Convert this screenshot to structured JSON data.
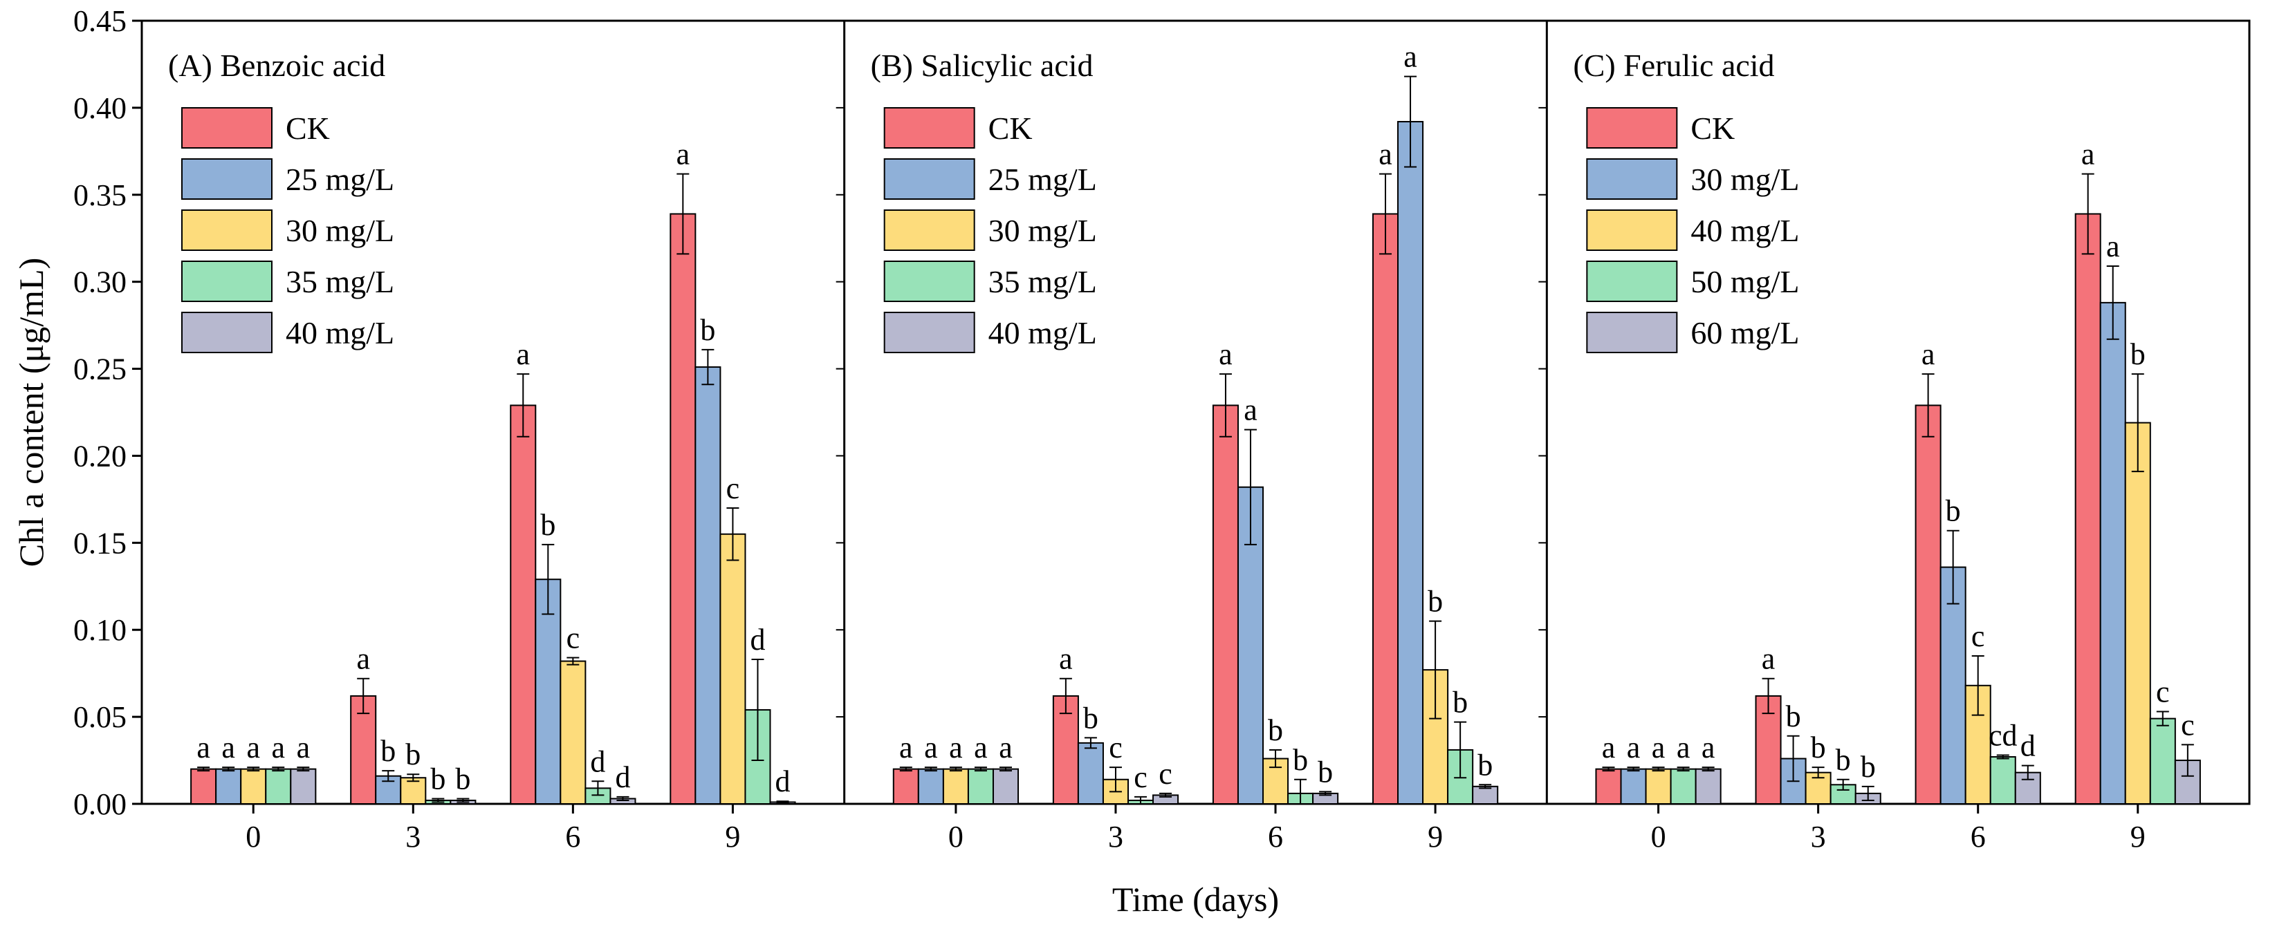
{
  "chart_data": {
    "type": "bar",
    "ylabel": "Chl a content (μg/mL)",
    "xlabel": "Time (days)",
    "ylim": [
      0,
      0.45
    ],
    "yticks": [
      "0.00",
      "0.05",
      "0.10",
      "0.15",
      "0.20",
      "0.25",
      "0.30",
      "0.35",
      "0.40",
      "0.45"
    ],
    "categories": [
      "0",
      "3",
      "6",
      "9"
    ],
    "colors": [
      "#f4737a",
      "#8fb0d8",
      "#fddc7c",
      "#98e2b8",
      "#b7b8cf"
    ],
    "panels": [
      {
        "title": "(A) Benzoic acid",
        "series": [
          {
            "name": "CK",
            "values": [
              0.02,
              0.062,
              0.229,
              0.339
            ],
            "errors": [
              0.001,
              0.01,
              0.018,
              0.023
            ],
            "labels": [
              "a",
              "a",
              "a",
              "a"
            ]
          },
          {
            "name": "25 mg/L",
            "values": [
              0.02,
              0.016,
              0.129,
              0.251
            ],
            "errors": [
              0.001,
              0.003,
              0.02,
              0.01
            ],
            "labels": [
              "a",
              "b",
              "b",
              "b"
            ]
          },
          {
            "name": "30 mg/L",
            "values": [
              0.02,
              0.015,
              0.082,
              0.155
            ],
            "errors": [
              0.001,
              0.002,
              0.002,
              0.015
            ],
            "labels": [
              "a",
              "b",
              "c",
              "c"
            ]
          },
          {
            "name": "35 mg/L",
            "values": [
              0.02,
              0.002,
              0.009,
              0.054
            ],
            "errors": [
              0.001,
              0.001,
              0.004,
              0.029
            ],
            "labels": [
              "a",
              "b",
              "d",
              "d"
            ]
          },
          {
            "name": "40 mg/L",
            "values": [
              0.02,
              0.002,
              0.003,
              0.001
            ],
            "errors": [
              0.001,
              0.001,
              0.001,
              0.0005
            ],
            "labels": [
              "a",
              "b",
              "d",
              "d"
            ]
          }
        ]
      },
      {
        "title": "(B) Salicylic acid",
        "series": [
          {
            "name": "CK",
            "values": [
              0.02,
              0.062,
              0.229,
              0.339
            ],
            "errors": [
              0.001,
              0.01,
              0.018,
              0.023
            ],
            "labels": [
              "a",
              "a",
              "a",
              "a"
            ]
          },
          {
            "name": "25 mg/L",
            "values": [
              0.02,
              0.035,
              0.182,
              0.392
            ],
            "errors": [
              0.001,
              0.003,
              0.033,
              0.026
            ],
            "labels": [
              "a",
              "b",
              "a",
              "a"
            ]
          },
          {
            "name": "30 mg/L",
            "values": [
              0.02,
              0.014,
              0.026,
              0.077
            ],
            "errors": [
              0.001,
              0.007,
              0.005,
              0.028
            ],
            "labels": [
              "a",
              "c",
              "b",
              "b"
            ]
          },
          {
            "name": "35 mg/L",
            "values": [
              0.02,
              0.002,
              0.006,
              0.031
            ],
            "errors": [
              0.001,
              0.002,
              0.008,
              0.016
            ],
            "labels": [
              "a",
              "c",
              "b",
              "b"
            ]
          },
          {
            "name": "40 mg/L",
            "values": [
              0.02,
              0.005,
              0.006,
              0.01
            ],
            "errors": [
              0.001,
              0.001,
              0.001,
              0.001
            ],
            "labels": [
              "a",
              "c",
              "b",
              "b"
            ]
          }
        ]
      },
      {
        "title": "(C) Ferulic acid",
        "series": [
          {
            "name": "CK",
            "values": [
              0.02,
              0.062,
              0.229,
              0.339
            ],
            "errors": [
              0.001,
              0.01,
              0.018,
              0.023
            ],
            "labels": [
              "a",
              "a",
              "a",
              "a"
            ]
          },
          {
            "name": "30 mg/L",
            "values": [
              0.02,
              0.026,
              0.136,
              0.288
            ],
            "errors": [
              0.001,
              0.013,
              0.021,
              0.021
            ],
            "labels": [
              "a",
              "b",
              "b",
              "a"
            ]
          },
          {
            "name": "40 mg/L",
            "values": [
              0.02,
              0.018,
              0.068,
              0.219
            ],
            "errors": [
              0.001,
              0.003,
              0.017,
              0.028
            ],
            "labels": [
              "a",
              "b",
              "c",
              "b"
            ]
          },
          {
            "name": "50 mg/L",
            "values": [
              0.02,
              0.011,
              0.027,
              0.049
            ],
            "errors": [
              0.001,
              0.003,
              0.001,
              0.004
            ],
            "labels": [
              "a",
              "b",
              "cd",
              "c"
            ]
          },
          {
            "name": "60 mg/L",
            "values": [
              0.02,
              0.006,
              0.018,
              0.025
            ],
            "errors": [
              0.001,
              0.004,
              0.004,
              0.009
            ],
            "labels": [
              "a",
              "b",
              "d",
              "c"
            ]
          }
        ]
      }
    ]
  }
}
